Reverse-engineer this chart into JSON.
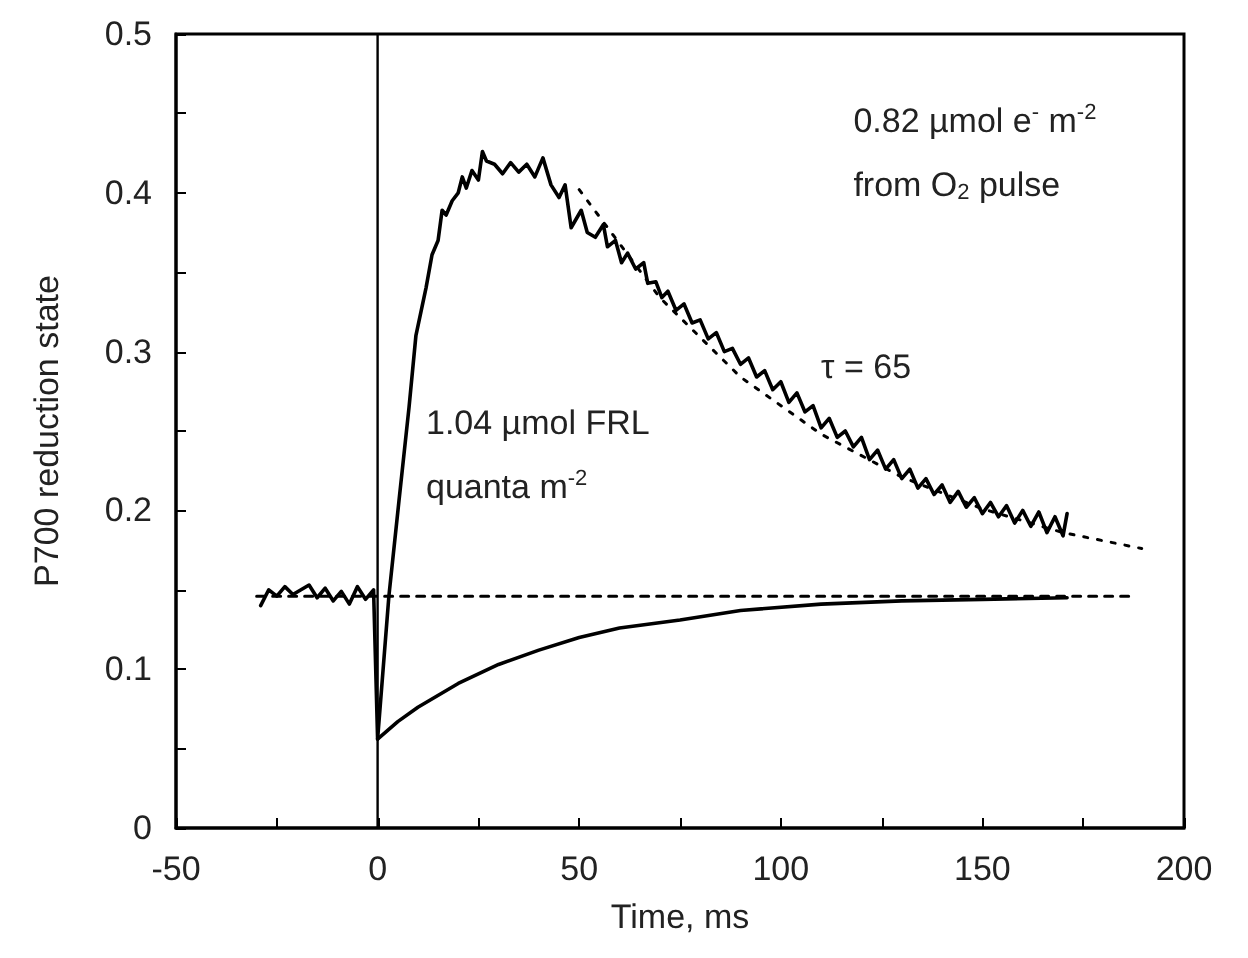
{
  "chart_data": {
    "type": "line",
    "xlabel": "Time, ms",
    "ylabel": "P700 reduction state",
    "xlim": [
      -50,
      200
    ],
    "ylim": [
      0,
      0.5
    ],
    "xticks": [
      -50,
      {
        "value": -25,
        "label": null
      },
      0,
      {
        "value": 25,
        "label": null
      },
      50,
      {
        "value": 75,
        "label": null
      },
      100,
      {
        "value": 125,
        "label": null
      },
      150,
      {
        "value": 175,
        "label": null
      },
      200
    ],
    "yticks": [
      0,
      {
        "value": 0.05,
        "label": null
      },
      0.1,
      {
        "value": 0.15,
        "label": null
      },
      0.2,
      {
        "value": 0.25,
        "label": null
      },
      0.3,
      {
        "value": 0.35,
        "label": null
      },
      0.4,
      {
        "value": 0.45,
        "label": null
      },
      0.5
    ],
    "grid": false,
    "marker": "none",
    "series": [
      {
        "color": "#000000",
        "line_style": "solid",
        "x": [
          -29,
          -27,
          -25,
          -23,
          -21,
          -19,
          -17,
          -15,
          -13,
          -11,
          -9,
          -7,
          -5,
          -3,
          -1,
          0,
          2.8,
          5.3,
          7.8,
          9.5,
          11,
          12,
          13.5,
          15,
          16,
          17,
          18.5,
          20,
          21,
          22,
          23.4,
          25,
          26,
          27,
          29,
          31,
          33,
          35,
          37,
          39,
          41,
          43,
          45,
          46.5,
          48,
          50.5,
          52,
          54,
          56,
          57,
          59,
          60.5,
          62,
          64,
          66,
          67,
          69,
          70.5,
          72,
          74,
          76,
          78,
          80,
          82,
          84,
          86,
          88,
          90,
          92,
          94,
          96,
          98,
          100,
          102,
          104,
          106,
          108,
          110,
          112,
          114,
          116,
          118,
          120,
          122,
          124,
          126,
          128,
          130,
          132,
          134,
          136,
          138,
          140,
          142,
          144,
          146,
          148,
          150,
          152,
          154,
          156,
          158,
          160,
          162,
          164,
          166,
          168,
          170,
          171
        ],
        "values": [
          0.14,
          0.15,
          0.146,
          0.152,
          0.147,
          0.15,
          0.153,
          0.145,
          0.151,
          0.143,
          0.149,
          0.141,
          0.152,
          0.144,
          0.15,
          0.056,
          0.146,
          0.206,
          0.265,
          0.31,
          0.328,
          0.34,
          0.361,
          0.37,
          0.389,
          0.386,
          0.395,
          0.4,
          0.41,
          0.403,
          0.414,
          0.408,
          0.426,
          0.42,
          0.418,
          0.412,
          0.419,
          0.413,
          0.418,
          0.41,
          0.422,
          0.405,
          0.397,
          0.405,
          0.378,
          0.389,
          0.375,
          0.372,
          0.38,
          0.366,
          0.37,
          0.356,
          0.362,
          0.352,
          0.356,
          0.343,
          0.344,
          0.334,
          0.338,
          0.326,
          0.33,
          0.318,
          0.32,
          0.308,
          0.312,
          0.3,
          0.302,
          0.292,
          0.296,
          0.284,
          0.288,
          0.276,
          0.281,
          0.268,
          0.274,
          0.262,
          0.266,
          0.252,
          0.258,
          0.246,
          0.25,
          0.24,
          0.246,
          0.232,
          0.238,
          0.226,
          0.232,
          0.22,
          0.226,
          0.214,
          0.22,
          0.21,
          0.216,
          0.205,
          0.212,
          0.202,
          0.208,
          0.198,
          0.205,
          0.196,
          0.203,
          0.192,
          0.2,
          0.19,
          0.199,
          0.186,
          0.196,
          0.184,
          0.198
        ]
      },
      {
        "color": "#000000",
        "line_style": "solid",
        "x": [
          0,
          5,
          10,
          20,
          30,
          40,
          50,
          60,
          75,
          90,
          110,
          130,
          150,
          171
        ],
        "values": [
          0.056,
          0.067,
          0.076,
          0.091,
          0.103,
          0.112,
          0.12,
          0.126,
          0.131,
          0.137,
          0.141,
          0.143,
          0.144,
          0.145
        ]
      },
      {
        "color": "#000000",
        "line_style": "dotted",
        "x": [
          50,
          70,
          90,
          110,
          130,
          150,
          170,
          189.5
        ],
        "values": [
          0.402,
          0.334,
          0.284,
          0.248,
          0.221,
          0.201,
          0.186,
          0.176
        ]
      },
      {
        "color": "#000000",
        "line_style": "dashed",
        "x": [
          -30,
          187
        ],
        "values": [
          0.146,
          0.146
        ]
      }
    ],
    "ref_lines": [
      {
        "axis": "x",
        "value": 0,
        "color": "#000000",
        "line_style": "solid"
      }
    ],
    "annotations": [
      "0.82 µmol e$^{-}$ m$^{-2}$",
      "from O$_{2}$ pulse",
      "τ = 65",
      "1.04 µmol FRL",
      "quanta m$^{-2}$"
    ]
  }
}
